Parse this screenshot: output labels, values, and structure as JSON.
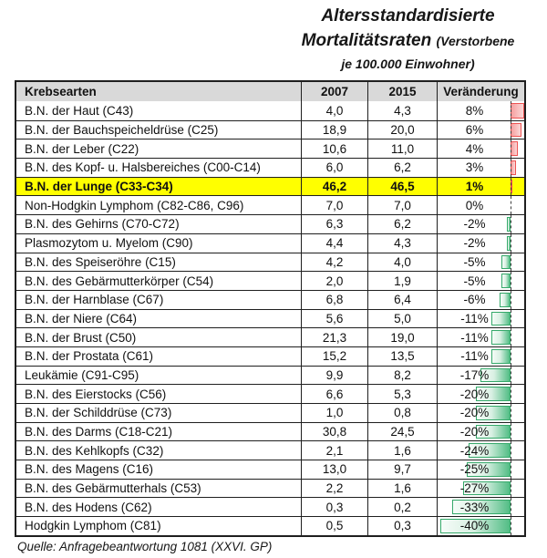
{
  "title": {
    "line1": "Altersstandardisierte",
    "line2_main": "Mortalitätsraten",
    "line2_note": "(Verstorbene",
    "line3": "je 100.000 Einwohner)"
  },
  "source": "Quelle: Anfragebeantwortung 1081 (XXVI. GP)",
  "colors": {
    "highlight_row": "#ffff00",
    "header_bg": "#d9d9d9",
    "positive_bar_border": "#ee5352",
    "positive_bar_fill": "#f6a0a0",
    "negative_bar_border": "#35a96a",
    "negative_bar_fill": "#52bd85",
    "axis_dash": "#3c3c3c",
    "table_border": "#1f1f1f"
  },
  "chart_data": {
    "type": "table",
    "title": "Altersstandardisierte Mortalitätsraten (Verstorbene je 100.000 Einwohner)",
    "columns": [
      "Krebsearten",
      "2007",
      "2015",
      "Veränderung"
    ],
    "bar_axis": {
      "range_pct": [
        -40,
        8
      ],
      "positive_color": "red",
      "negative_color": "green"
    },
    "highlighted_row": "B.N. der Lunge (C33-C34)",
    "rows": [
      {
        "label": "B.N. der Haut (C43)",
        "v2007": "4,0",
        "v2015": "4,3",
        "change": "8%",
        "pct": 8,
        "highlight": false
      },
      {
        "label": "B.N. der Bauchspeicheldrüse (C25)",
        "v2007": "18,9",
        "v2015": "20,0",
        "change": "6%",
        "pct": 6,
        "highlight": false
      },
      {
        "label": "B.N. der Leber (C22)",
        "v2007": "10,6",
        "v2015": "11,0",
        "change": "4%",
        "pct": 4,
        "highlight": false
      },
      {
        "label": "B.N. des Kopf- u. Halsbereiches (C00-C14)",
        "v2007": "6,0",
        "v2015": "6,2",
        "change": "3%",
        "pct": 3,
        "highlight": false
      },
      {
        "label": "B.N. der Lunge (C33-C34)",
        "v2007": "46,2",
        "v2015": "46,5",
        "change": "1%",
        "pct": 1,
        "highlight": true
      },
      {
        "label": "Non-Hodgkin Lymphom (C82-C86, C96)",
        "v2007": "7,0",
        "v2015": "7,0",
        "change": "0%",
        "pct": 0,
        "highlight": false
      },
      {
        "label": "B.N. des Gehirns (C70-C72)",
        "v2007": "6,3",
        "v2015": "6,2",
        "change": "-2%",
        "pct": -2,
        "highlight": false
      },
      {
        "label": "Plasmozytom u. Myelom (C90)",
        "v2007": "4,4",
        "v2015": "4,3",
        "change": "-2%",
        "pct": -2,
        "highlight": false
      },
      {
        "label": "B.N. des Speiseröhre (C15)",
        "v2007": "4,2",
        "v2015": "4,0",
        "change": "-5%",
        "pct": -5,
        "highlight": false
      },
      {
        "label": "B.N. des Gebärmutterkörper (C54)",
        "v2007": "2,0",
        "v2015": "1,9",
        "change": "-5%",
        "pct": -5,
        "highlight": false
      },
      {
        "label": "B.N. der Harnblase (C67)",
        "v2007": "6,8",
        "v2015": "6,4",
        "change": "-6%",
        "pct": -6,
        "highlight": false
      },
      {
        "label": "B.N. der Niere (C64)",
        "v2007": "5,6",
        "v2015": "5,0",
        "change": "-11%",
        "pct": -11,
        "highlight": false
      },
      {
        "label": "B.N. der Brust (C50)",
        "v2007": "21,3",
        "v2015": "19,0",
        "change": "-11%",
        "pct": -11,
        "highlight": false
      },
      {
        "label": "B.N. der Prostata (C61)",
        "v2007": "15,2",
        "v2015": "13,5",
        "change": "-11%",
        "pct": -11,
        "highlight": false
      },
      {
        "label": "Leukämie (C91-C95)",
        "v2007": "9,9",
        "v2015": "8,2",
        "change": "-17%",
        "pct": -17,
        "highlight": false
      },
      {
        "label": "B.N. des Eierstocks (C56)",
        "v2007": "6,6",
        "v2015": "5,3",
        "change": "-20%",
        "pct": -20,
        "highlight": false
      },
      {
        "label": "B.N. der Schilddrüse (C73)",
        "v2007": "1,0",
        "v2015": "0,8",
        "change": "-20%",
        "pct": -20,
        "highlight": false
      },
      {
        "label": "B.N. des Darms (C18-C21)",
        "v2007": "30,8",
        "v2015": "24,5",
        "change": "-20%",
        "pct": -20,
        "highlight": false
      },
      {
        "label": "B.N. des Kehlkopfs (C32)",
        "v2007": "2,1",
        "v2015": "1,6",
        "change": "-24%",
        "pct": -24,
        "highlight": false
      },
      {
        "label": "B.N. des Magens (C16)",
        "v2007": "13,0",
        "v2015": "9,7",
        "change": "-25%",
        "pct": -25,
        "highlight": false
      },
      {
        "label": "B.N. des Gebärmutterhals (C53)",
        "v2007": "2,2",
        "v2015": "1,6",
        "change": "-27%",
        "pct": -27,
        "highlight": false
      },
      {
        "label": "B.N. des Hodens (C62)",
        "v2007": "0,3",
        "v2015": "0,2",
        "change": "-33%",
        "pct": -33,
        "highlight": false
      },
      {
        "label": "Hodgkin Lymphom (C81)",
        "v2007": "0,5",
        "v2015": "0,3",
        "change": "-40%",
        "pct": -40,
        "highlight": false
      }
    ]
  }
}
